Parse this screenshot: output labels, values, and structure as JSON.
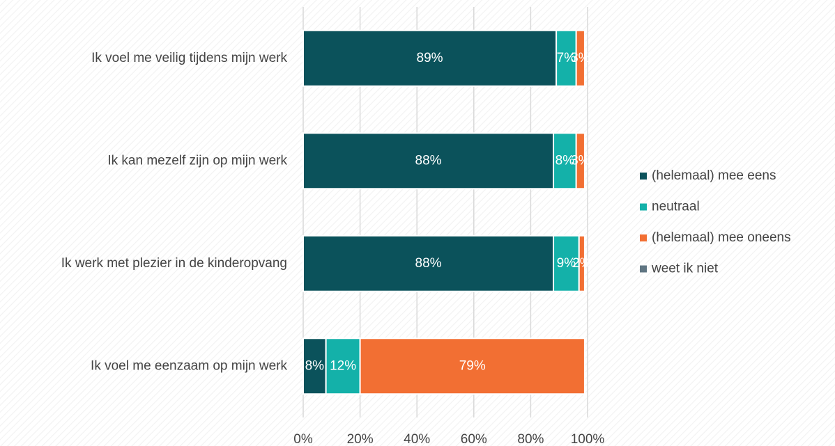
{
  "chart_data": {
    "type": "stacked-barh",
    "categories": [
      "Ik voel me veilig tijdens mijn werk",
      "Ik kan mezelf zijn op mijn werk",
      "Ik werk met plezier in de kinderopvang",
      "Ik voel me eenzaam op mijn werk"
    ],
    "series": [
      {
        "name": "(helemaal) mee eens",
        "color": "#0b525b",
        "values": [
          89,
          88,
          88,
          8
        ],
        "value_labels": [
          "89%",
          "88%",
          "88%",
          "8%"
        ]
      },
      {
        "name": "neutraal",
        "color": "#14b1a9",
        "values": [
          7,
          8,
          9,
          12
        ],
        "value_labels": [
          "7%",
          "8%",
          "9%",
          "12%"
        ]
      },
      {
        "name": "(helemaal) mee oneens",
        "color": "#f26f33",
        "values": [
          3,
          3,
          2,
          79
        ],
        "value_labels": [
          "3%",
          "3%",
          "2%",
          "79%"
        ]
      },
      {
        "name": "weet ik niet",
        "color": "#5f7582",
        "values": [
          0,
          0,
          0,
          0
        ]
      }
    ],
    "xlim": [
      0,
      100
    ],
    "xticks": [
      {
        "value": 0,
        "label": "0%"
      },
      {
        "value": 20,
        "label": "20%"
      },
      {
        "value": 40,
        "label": "40%"
      },
      {
        "value": 60,
        "label": "60%"
      },
      {
        "value": 80,
        "label": "80%"
      },
      {
        "value": 100,
        "label": "100%"
      }
    ],
    "grid": true,
    "legend": "right"
  }
}
